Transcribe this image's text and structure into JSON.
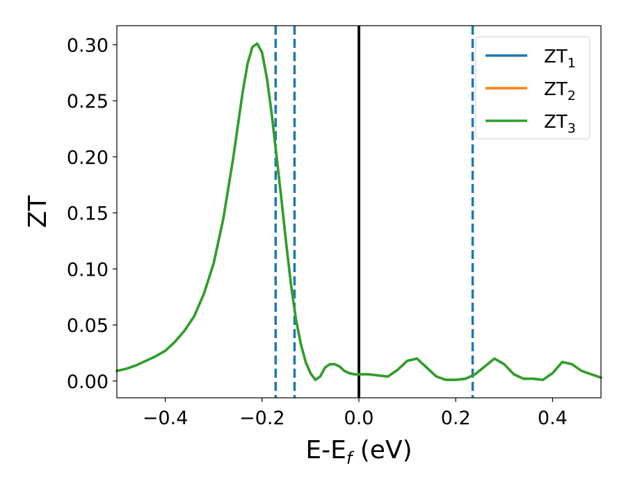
{
  "chart_data": {
    "type": "line",
    "xlabel": {
      "main": "E-E",
      "sub": "f",
      "suffix": " (eV)"
    },
    "ylabel": "ZT",
    "xlim": [
      -0.5,
      0.5
    ],
    "ylim": [
      -0.015,
      0.317
    ],
    "xticks": [
      {
        "value": -0.4,
        "label": "−0.4"
      },
      {
        "value": -0.2,
        "label": "−0.2"
      },
      {
        "value": 0.0,
        "label": "0.0"
      },
      {
        "value": 0.2,
        "label": "0.2"
      },
      {
        "value": 0.4,
        "label": "0.4"
      }
    ],
    "yticks": [
      {
        "value": 0.0,
        "label": "0.00"
      },
      {
        "value": 0.05,
        "label": "0.05"
      },
      {
        "value": 0.1,
        "label": "0.10"
      },
      {
        "value": 0.15,
        "label": "0.15"
      },
      {
        "value": 0.2,
        "label": "0.20"
      },
      {
        "value": 0.25,
        "label": "0.25"
      },
      {
        "value": 0.3,
        "label": "0.30"
      }
    ],
    "grid": false,
    "legend_position": "top-right",
    "series": [
      {
        "name": "ZT",
        "sub": "1",
        "color": "#1f77b4"
      },
      {
        "name": "ZT",
        "sub": "2",
        "color": "#ff7f0e"
      },
      {
        "name": "ZT",
        "sub": "3",
        "color": "#2ca02c"
      }
    ],
    "x": [
      -0.5,
      -0.48,
      -0.46,
      -0.44,
      -0.42,
      -0.4,
      -0.38,
      -0.36,
      -0.34,
      -0.32,
      -0.3,
      -0.28,
      -0.26,
      -0.24,
      -0.23,
      -0.22,
      -0.21,
      -0.2,
      -0.19,
      -0.18,
      -0.17,
      -0.16,
      -0.15,
      -0.14,
      -0.13,
      -0.12,
      -0.11,
      -0.1,
      -0.09,
      -0.08,
      -0.07,
      -0.06,
      -0.05,
      -0.04,
      -0.03,
      -0.02,
      -0.01,
      0.0,
      0.02,
      0.04,
      0.06,
      0.08,
      0.1,
      0.12,
      0.14,
      0.16,
      0.18,
      0.2,
      0.22,
      0.24,
      0.26,
      0.28,
      0.3,
      0.32,
      0.34,
      0.36,
      0.38,
      0.4,
      0.42,
      0.44,
      0.46,
      0.48,
      0.5
    ],
    "y": [
      0.009,
      0.011,
      0.014,
      0.018,
      0.022,
      0.027,
      0.035,
      0.045,
      0.058,
      0.078,
      0.105,
      0.145,
      0.198,
      0.258,
      0.283,
      0.298,
      0.301,
      0.293,
      0.27,
      0.238,
      0.2,
      0.162,
      0.122,
      0.085,
      0.055,
      0.033,
      0.017,
      0.007,
      0.001,
      0.004,
      0.012,
      0.015,
      0.015,
      0.013,
      0.009,
      0.007,
      0.006,
      0.006,
      0.006,
      0.005,
      0.004,
      0.01,
      0.018,
      0.02,
      0.012,
      0.004,
      0.001,
      0.001,
      0.002,
      0.006,
      0.013,
      0.02,
      0.015,
      0.006,
      0.002,
      0.002,
      0.001,
      0.007,
      0.017,
      0.015,
      0.009,
      0.006,
      0.003
    ],
    "vlines": [
      {
        "x": -0.172,
        "color": "#1f77b4",
        "style": "dashed"
      },
      {
        "x": -0.133,
        "color": "#1f77b4",
        "style": "dashed"
      },
      {
        "x": 0.235,
        "color": "#1f77b4",
        "style": "dashed"
      },
      {
        "x": 0.0,
        "color": "#000000",
        "style": "solid"
      }
    ]
  }
}
